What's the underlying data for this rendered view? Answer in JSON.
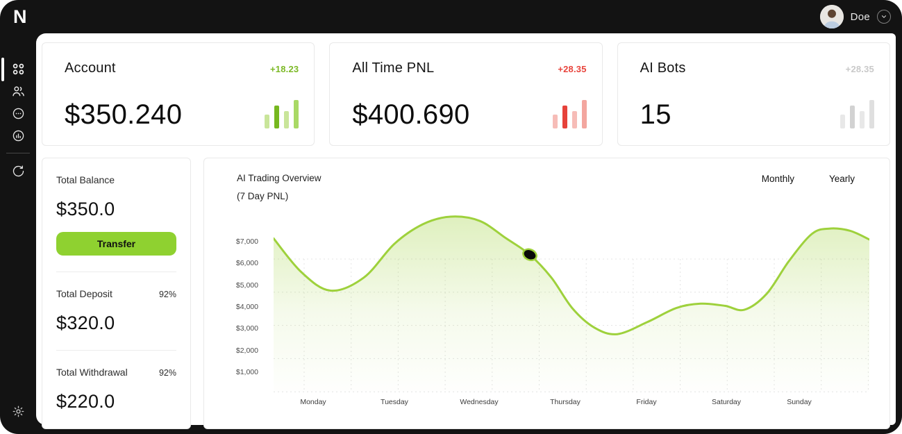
{
  "app": {
    "logo": "N"
  },
  "header": {
    "user_name": "Doe"
  },
  "sidebar": {
    "active": "dashboard",
    "items": [
      "dashboard",
      "users",
      "support",
      "analytics",
      "sync",
      "settings"
    ]
  },
  "stat_cards": [
    {
      "title": "Account",
      "value": "$350.240",
      "change": "+18.23",
      "trend": "up",
      "sparkline": [
        20,
        33,
        25,
        41
      ]
    },
    {
      "title": "All Time PNL",
      "value": "$400.690",
      "change": "+28.35",
      "trend": "down",
      "sparkline": [
        20,
        33,
        25,
        41
      ]
    },
    {
      "title": "AI Bots",
      "value": "15",
      "change": "+28.35",
      "trend": "neutral",
      "sparkline": [
        20,
        33,
        25,
        41
      ]
    }
  ],
  "balance_panel": {
    "balance_label": "Total Balance",
    "balance_value": "$350.0",
    "transfer_label": "Transfer",
    "deposit_label": "Total Deposit",
    "deposit_pct": "92%",
    "deposit_value": "$320.0",
    "withdrawal_label": "Total Withdrawal",
    "withdrawal_pct": "92%",
    "withdrawal_value": "$220.0"
  },
  "chart": {
    "ranges": [
      "Monthly",
      "Yearly"
    ]
  },
  "chart_data": {
    "type": "area",
    "title": "AI Trading Overview",
    "subtitle": "(7 Day PNL)",
    "categories": [
      "Monday",
      "Tuesday",
      "Wednesday",
      "Thursday",
      "Friday",
      "Saturday",
      "Sunday"
    ],
    "day_values": [
      4900,
      6900,
      7950,
      4100,
      3300,
      4050,
      6800
    ],
    "y_ticks": [
      "$7,000",
      "$6,000",
      "$5,000",
      "$4,000",
      "$3,000",
      "$2,000",
      "$1,000"
    ],
    "y_tick_values": [
      7000,
      6000,
      5000,
      4000,
      3000,
      2000,
      1000
    ],
    "ylim": [
      0,
      8500
    ],
    "grid": "dashed",
    "legend_position": "none",
    "curve_points": [
      [
        0,
        7150
      ],
      [
        40,
        5600
      ],
      [
        82,
        4750
      ],
      [
        130,
        5350
      ],
      [
        174,
        6900
      ],
      [
        215,
        7800
      ],
      [
        255,
        8150
      ],
      [
        297,
        7950
      ],
      [
        335,
        7150
      ],
      [
        369,
        6400
      ],
      [
        400,
        5350
      ],
      [
        430,
        3950
      ],
      [
        462,
        3050
      ],
      [
        495,
        2750
      ],
      [
        538,
        3300
      ],
      [
        580,
        3950
      ],
      [
        615,
        4150
      ],
      [
        650,
        4050
      ],
      [
        678,
        3870
      ],
      [
        710,
        4600
      ],
      [
        742,
        6100
      ],
      [
        775,
        7350
      ],
      [
        800,
        7600
      ],
      [
        830,
        7500
      ],
      [
        858,
        7100
      ]
    ],
    "highlight_point": {
      "x": 369,
      "value": 6400
    }
  },
  "colors": {
    "accent_green": "#8fd130",
    "line_green": "#9ed13c",
    "fill_green": "#9ed13c",
    "trend": {
      "up": "#7cb926",
      "down": "#e8453d",
      "neutral": "#c9c9c9"
    },
    "spark": {
      "up": {
        "light": "#c9e59a",
        "dark": "#76b71f",
        "mid": "#a9d965"
      },
      "down": {
        "light": "#f6bcb7",
        "dark": "#e6423a",
        "mid": "#f3a69f"
      },
      "neutral": {
        "light": "#e8e8e8",
        "dark": "#d2d2d2",
        "mid": "#dfdfdf"
      }
    },
    "frame_bg": "#131313"
  }
}
